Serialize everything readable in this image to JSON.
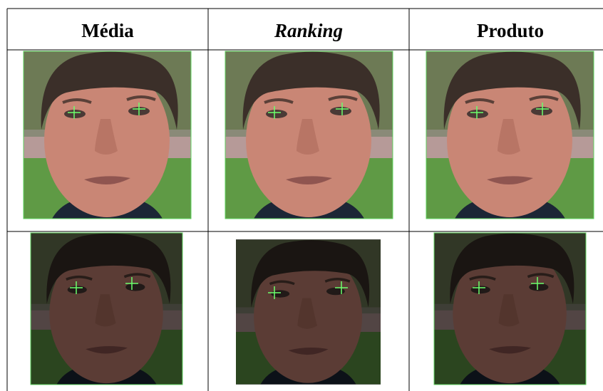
{
  "table": {
    "header": [
      "Média",
      "Ranking",
      "Produto"
    ]
  }
}
